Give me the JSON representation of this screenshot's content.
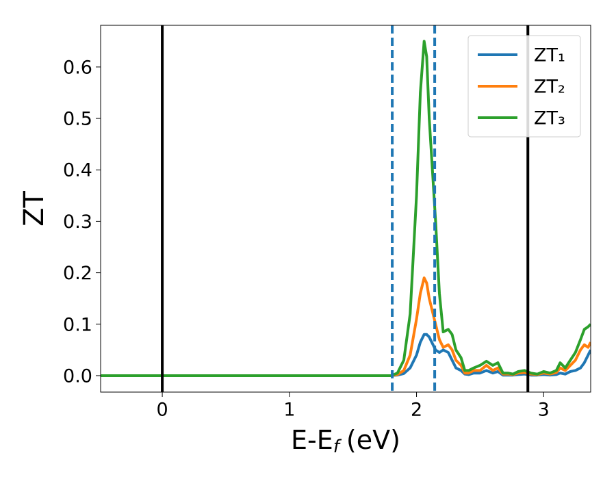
{
  "chart_data": {
    "type": "line",
    "y_label": "ZT",
    "x_label": [
      "E-E",
      "f",
      "(eV)"
    ],
    "x": [
      -0.485,
      1.8,
      1.85,
      1.9,
      1.95,
      2.0,
      2.03,
      2.06,
      2.08,
      2.1,
      2.13,
      2.15,
      2.18,
      2.21,
      2.25,
      2.28,
      2.31,
      2.35,
      2.38,
      2.41,
      2.45,
      2.5,
      2.55,
      2.6,
      2.64,
      2.68,
      2.72,
      2.76,
      2.8,
      2.85,
      2.9,
      2.95,
      3.0,
      3.05,
      3.1,
      3.13,
      3.17,
      3.21,
      3.25,
      3.29,
      3.32,
      3.35,
      3.37
    ],
    "series": [
      {
        "name": "ZT₁",
        "color": "#1f77b4",
        "values": [
          0,
          0,
          0.001,
          0.004,
          0.015,
          0.04,
          0.065,
          0.08,
          0.08,
          0.075,
          0.06,
          0.05,
          0.045,
          0.05,
          0.045,
          0.03,
          0.015,
          0.01,
          0.003,
          0.002,
          0.005,
          0.005,
          0.01,
          0.005,
          0.008,
          0.001,
          0.001,
          0.001,
          0.002,
          0.003,
          0.001,
          0.001,
          0.002,
          0.001,
          0.002,
          0.005,
          0.003,
          0.008,
          0.01,
          0.015,
          0.025,
          0.04,
          0.05
        ]
      },
      {
        "name": "ZT₂",
        "color": "#ff7f0e",
        "values": [
          0,
          0,
          0.002,
          0.01,
          0.04,
          0.11,
          0.16,
          0.19,
          0.18,
          0.15,
          0.12,
          0.1,
          0.07,
          0.055,
          0.06,
          0.05,
          0.03,
          0.02,
          0.005,
          0.005,
          0.01,
          0.01,
          0.02,
          0.01,
          0.015,
          0.003,
          0.003,
          0.002,
          0.005,
          0.006,
          0.003,
          0.002,
          0.005,
          0.003,
          0.006,
          0.015,
          0.01,
          0.02,
          0.03,
          0.05,
          0.06,
          0.055,
          0.065
        ]
      },
      {
        "name": "ZT₃",
        "color": "#2ca02c",
        "values": [
          0,
          0,
          0.005,
          0.03,
          0.12,
          0.35,
          0.55,
          0.65,
          0.62,
          0.5,
          0.38,
          0.3,
          0.16,
          0.085,
          0.09,
          0.08,
          0.05,
          0.035,
          0.01,
          0.01,
          0.015,
          0.02,
          0.028,
          0.02,
          0.025,
          0.005,
          0.005,
          0.003,
          0.008,
          0.01,
          0.005,
          0.003,
          0.008,
          0.005,
          0.01,
          0.025,
          0.015,
          0.03,
          0.045,
          0.07,
          0.09,
          0.095,
          0.1
        ]
      }
    ],
    "vlines": [
      {
        "x": 0,
        "color": "#000000",
        "style": "solid"
      },
      {
        "x": 2.876,
        "color": "#000000",
        "style": "solid"
      },
      {
        "x": 1.809,
        "color": "#1f77b4",
        "style": "dashed"
      },
      {
        "x": 2.143,
        "color": "#1f77b4",
        "style": "dashed"
      }
    ],
    "xlim": [
      -0.485,
      3.37
    ],
    "ylim": [
      -0.032,
      0.681
    ],
    "xticks": [
      0,
      1,
      2,
      3
    ],
    "yticks": [
      {
        "value": 0,
        "label": "0.0"
      },
      0.1,
      0.2,
      0.3,
      0.4,
      0.5,
      0.6
    ],
    "legend": "upper right",
    "grid": false
  }
}
